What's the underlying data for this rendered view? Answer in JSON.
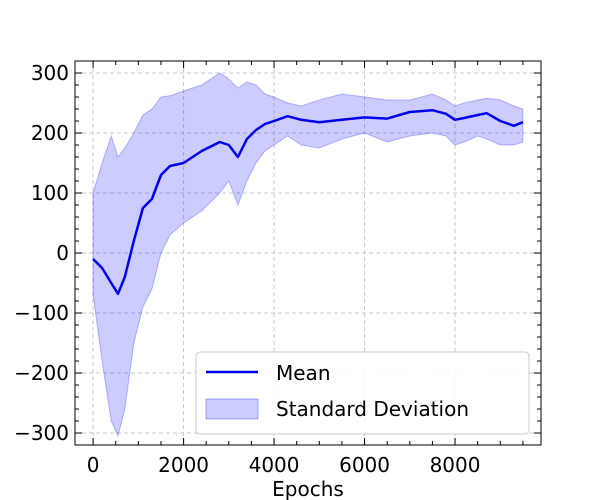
{
  "chart_data": {
    "type": "line",
    "title": "",
    "xlabel": "Epochs",
    "ylabel": "",
    "xlim": [
      -400,
      9900
    ],
    "ylim": [
      -320,
      320
    ],
    "xticks": [
      0,
      2000,
      4000,
      6000,
      8000
    ],
    "xtick_labels": [
      "0",
      "2000",
      "4000",
      "6000",
      "8000"
    ],
    "yticks": [
      -300,
      -200,
      -100,
      0,
      100,
      200,
      300
    ],
    "ytick_labels": [
      "−300",
      "−200",
      "−100",
      "0",
      "100",
      "200",
      "300"
    ],
    "grid": true,
    "legend_position": "bottom-right",
    "series": [
      {
        "name": "Mean",
        "kind": "line",
        "color": "#0000ee",
        "x": [
          0,
          200,
          400,
          550,
          700,
          900,
          1100,
          1300,
          1500,
          1700,
          2000,
          2400,
          2800,
          3000,
          3200,
          3400,
          3600,
          3800,
          4000,
          4300,
          4600,
          5000,
          5500,
          6000,
          6500,
          7000,
          7500,
          7800,
          8000,
          8200,
          8500,
          8700,
          9000,
          9300,
          9500
        ],
        "y": [
          -10,
          -25,
          -50,
          -68,
          -40,
          20,
          75,
          90,
          130,
          145,
          150,
          170,
          185,
          180,
          160,
          190,
          205,
          215,
          220,
          228,
          222,
          218,
          222,
          226,
          224,
          235,
          238,
          232,
          222,
          225,
          230,
          233,
          220,
          212,
          218
        ]
      },
      {
        "name": "Standard Deviation",
        "kind": "band",
        "color": "#0000ff",
        "x": [
          0,
          200,
          400,
          550,
          700,
          900,
          1100,
          1300,
          1500,
          1700,
          2000,
          2400,
          2800,
          3000,
          3200,
          3400,
          3600,
          3800,
          4000,
          4300,
          4600,
          5000,
          5500,
          6000,
          6500,
          7000,
          7500,
          7800,
          8000,
          8200,
          8500,
          8700,
          9000,
          9300,
          9500
        ],
        "lower": [
          -70,
          -180,
          -280,
          -305,
          -260,
          -150,
          -90,
          -60,
          0,
          30,
          50,
          70,
          100,
          120,
          80,
          120,
          150,
          170,
          180,
          195,
          180,
          175,
          190,
          200,
          185,
          195,
          200,
          195,
          180,
          185,
          195,
          190,
          180,
          180,
          185
        ],
        "upper": [
          100,
          150,
          195,
          160,
          175,
          200,
          230,
          240,
          260,
          262,
          270,
          280,
          300,
          290,
          275,
          285,
          280,
          265,
          260,
          250,
          245,
          255,
          265,
          260,
          255,
          255,
          265,
          255,
          245,
          250,
          255,
          258,
          255,
          245,
          240
        ]
      }
    ]
  }
}
